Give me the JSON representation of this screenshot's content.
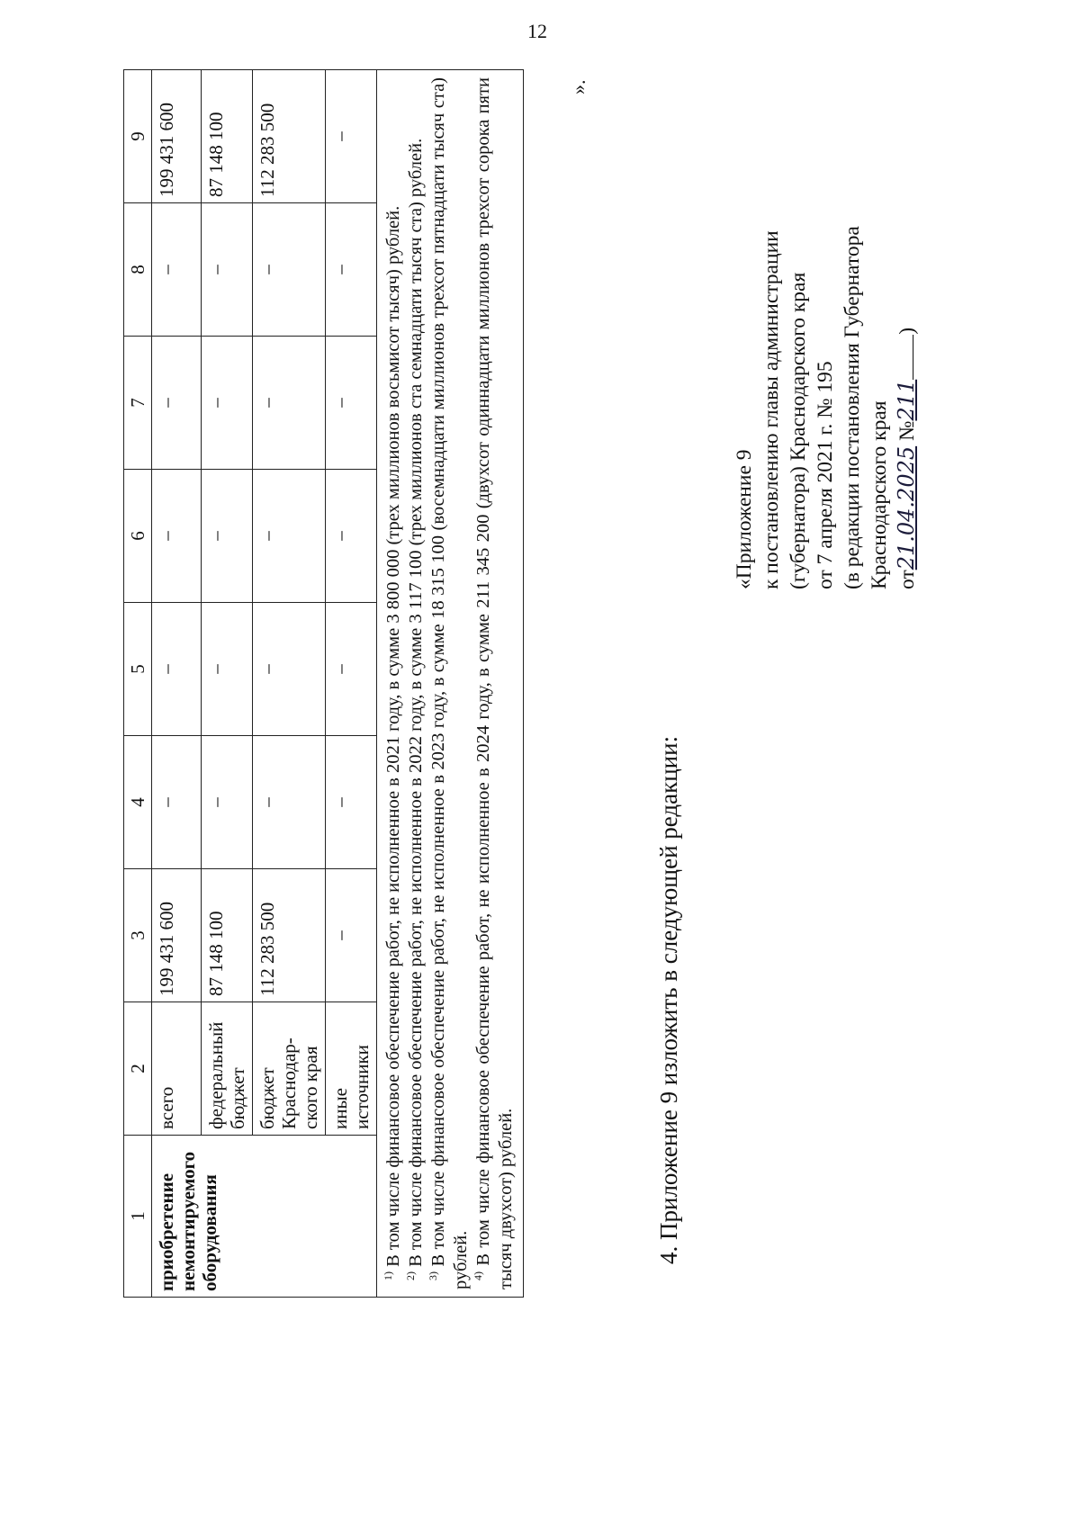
{
  "page_number": "12",
  "table": {
    "headers": [
      "1",
      "2",
      "3",
      "4",
      "5",
      "6",
      "7",
      "8",
      "9"
    ],
    "item_name": "приобретение немонтируемого оборудования",
    "rows": [
      {
        "source": "всего",
        "values": [
          "199 431 600",
          "–",
          "–",
          "–",
          "–",
          "–",
          "199 431 600"
        ]
      },
      {
        "source": "федеральный бюджет",
        "values": [
          "87 148 100",
          "–",
          "–",
          "–",
          "–",
          "–",
          "87 148 100"
        ]
      },
      {
        "source": "бюджет Краснодар-ского края",
        "values": [
          "112 283 500",
          "–",
          "–",
          "–",
          "–",
          "–",
          "112 283 500"
        ]
      },
      {
        "source": "иные источники",
        "values": [
          "–",
          "–",
          "–",
          "–",
          "–",
          "–",
          "–"
        ]
      }
    ],
    "footnotes": [
      {
        "mark": "1)",
        "text": " В том числе финансовое обеспечение работ, не исполненное в 2021 году, в сумме 3 800 000 (трех миллионов восьмисот тысяч) рублей."
      },
      {
        "mark": "2)",
        "text": " В том числе финансовое обеспечение работ, не исполненное в 2022 году, в сумме 3 117 100 (трех миллионов ста семнадцати тысяч ста) рублей."
      },
      {
        "mark": "3)",
        "text": " В том числе финансовое обеспечение работ, не исполненное в 2023 году, в сумме 18 315 100 (восемнадцати миллионов трехсот пятнадцати тысяч ста) рублей."
      },
      {
        "mark": "4)",
        "text": " В том числе финансовое обеспечение работ, не исполненное в 2024 году, в сумме 211 345 200 (двухсот одиннадцати миллионов трехсот сорока пяти тысяч двухсот) рублей."
      }
    ]
  },
  "closing_quote": "».",
  "item4": "4. Приложение 9 изложить в следующей редакции:",
  "appendix": {
    "lines": [
      "«Приложение 9",
      "к постановлению главы администрации",
      "(губернатора) Краснодарского края",
      "от 7 апреля 2021 г. № 195",
      "(в редакции постановления Губернатора",
      "Краснодарского края"
    ],
    "date_prefix": "от",
    "date_handwritten": "21.04.2025",
    "number_prefix": "№",
    "number_handwritten": "211",
    "closing_paren": ")"
  }
}
